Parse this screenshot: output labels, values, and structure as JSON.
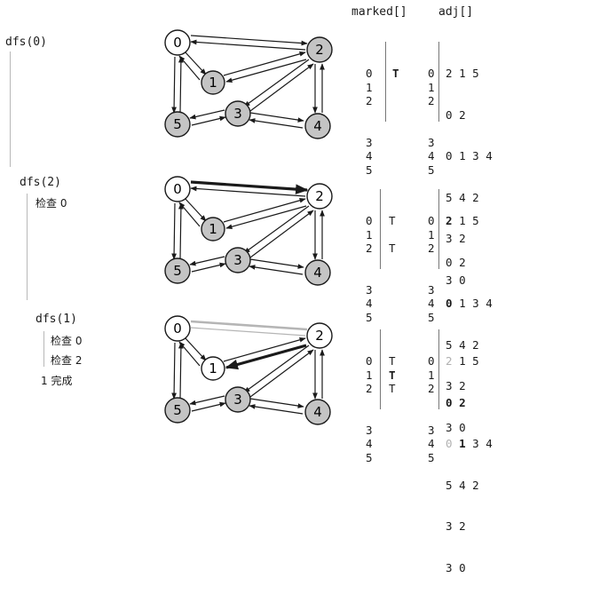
{
  "headers": {
    "marked": "marked[]",
    "adj": "adj[]"
  },
  "steps": [
    {
      "trace": [
        "dfs(0)"
      ],
      "vertices": [
        "0",
        "1",
        "2",
        "3",
        "4",
        "5"
      ],
      "marked": [
        "T",
        "",
        "",
        "",
        "",
        ""
      ],
      "adj": [
        [
          "2",
          "1",
          "5"
        ],
        [
          "0",
          "2"
        ],
        [
          "0",
          "1",
          "3",
          "4"
        ],
        [
          "5",
          "4",
          "2"
        ],
        [
          "3",
          "2"
        ],
        [
          "3",
          "0"
        ]
      ]
    },
    {
      "trace": [
        "dfs(2)",
        "检查 0"
      ],
      "vertices": [
        "0",
        "1",
        "2",
        "3",
        "4",
        "5"
      ],
      "marked": [
        "T",
        "",
        "T",
        "",
        "",
        ""
      ],
      "adj": [
        [
          "2",
          "1",
          "5"
        ],
        [
          "0",
          "2"
        ],
        [
          "0",
          "1",
          "3",
          "4"
        ],
        [
          "5",
          "4",
          "2"
        ],
        [
          "3",
          "2"
        ],
        [
          "3",
          "0"
        ]
      ]
    },
    {
      "trace": [
        "dfs(1)",
        "检查 0",
        "检查 2",
        "1 完成"
      ],
      "vertices": [
        "0",
        "1",
        "2",
        "3",
        "4",
        "5"
      ],
      "marked": [
        "T",
        "T",
        "T",
        "",
        "",
        ""
      ],
      "adj": [
        [
          "2",
          "1",
          "5"
        ],
        [
          "0",
          "2"
        ],
        [
          "0",
          "1",
          "3",
          "4"
        ],
        [
          "5",
          "4",
          "2"
        ],
        [
          "3",
          "2"
        ],
        [
          "3",
          "0"
        ]
      ]
    }
  ],
  "colors": {
    "marked_fill": "#c4c4c4",
    "unmarked_fill": "#ffffff",
    "stroke": "#1a1a1a",
    "faint_edge": "#b5b5b5"
  }
}
